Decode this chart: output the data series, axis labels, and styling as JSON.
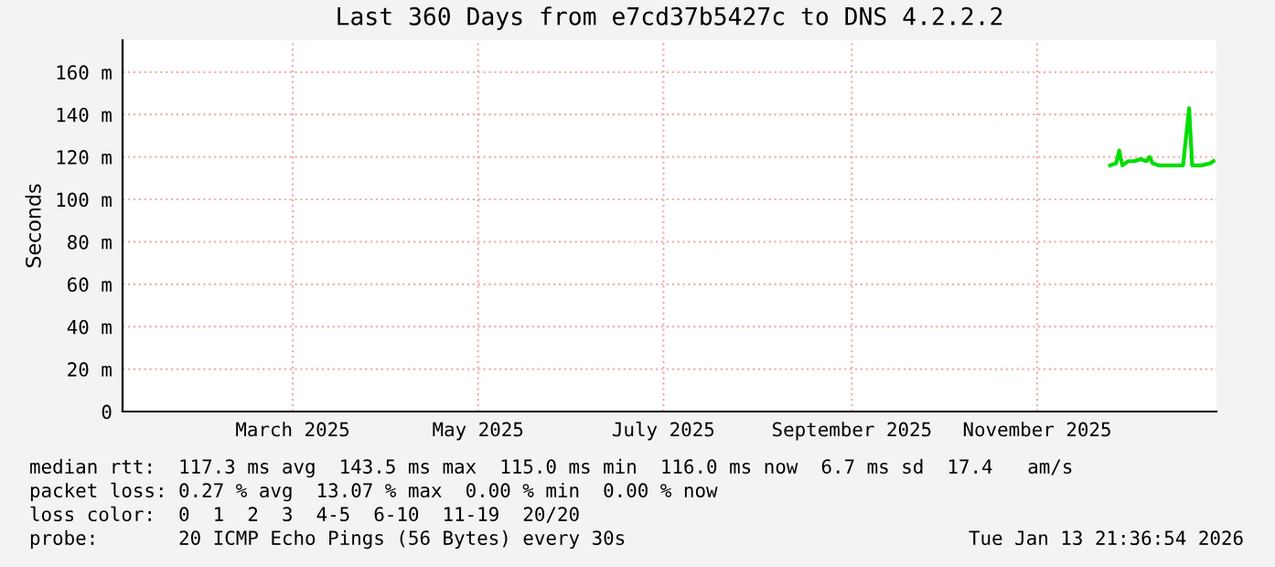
{
  "chart_data": {
    "type": "line",
    "title": "Last 360 Days from e7cd37b5427c to DNS 4.2.2.2",
    "ylabel": "Seconds",
    "x": [
      "2025-12-09",
      "2025-12-11",
      "2025-12-12",
      "2025-12-13",
      "2025-12-15",
      "2025-12-17",
      "2025-12-19",
      "2025-12-21",
      "2025-12-22",
      "2025-12-23",
      "2025-12-25",
      "2025-12-28",
      "2025-12-31",
      "2026-01-02",
      "2026-01-04",
      "2026-01-05",
      "2026-01-08",
      "2026-01-11",
      "2026-01-12"
    ],
    "series": [
      {
        "color": "#00dd00",
        "values": [
          116,
          117,
          123,
          116,
          118,
          118,
          119,
          118,
          120,
          117,
          116,
          116,
          116,
          116,
          143,
          116,
          116,
          117,
          118
        ]
      }
    ],
    "xlim": [
      "2025-01-18",
      "2026-01-13"
    ],
    "xticks": [
      {
        "value": "2025-03-15",
        "label": "March 2025"
      },
      {
        "value": "2025-05-15",
        "label": "May 2025"
      },
      {
        "value": "2025-07-15",
        "label": "July 2025"
      },
      {
        "value": "2025-09-15",
        "label": "September 2025"
      },
      {
        "value": "2025-11-15",
        "label": "November 2025"
      }
    ],
    "ylim": [
      0,
      175
    ],
    "yticks": [
      0,
      {
        "value": 20,
        "label": "20 m"
      },
      {
        "value": 40,
        "label": "40 m"
      },
      {
        "value": 60,
        "label": "60 m"
      },
      {
        "value": 80,
        "label": "80 m"
      },
      {
        "value": 100,
        "label": "100 m"
      },
      {
        "value": 120,
        "label": "120 m"
      },
      {
        "value": 140,
        "label": "140 m"
      },
      {
        "value": 160,
        "label": "160 m"
      }
    ],
    "grid": true,
    "annotations": [
      "median rtt:  117.3 ms avg  143.5 ms max  115.0 ms min  116.0 ms now  6.7 ms sd  17.4   am/s",
      "packet loss: 0.27 % avg  13.07 % max  0.00 % min  0.00 % now",
      "loss color:  0  1  2  3  4-5  6-10  11-19  20/20",
      "probe:       20 ICMP Echo Pings (56 Bytes) every 30s",
      "Tue Jan 13 21:36:54 2026"
    ]
  }
}
